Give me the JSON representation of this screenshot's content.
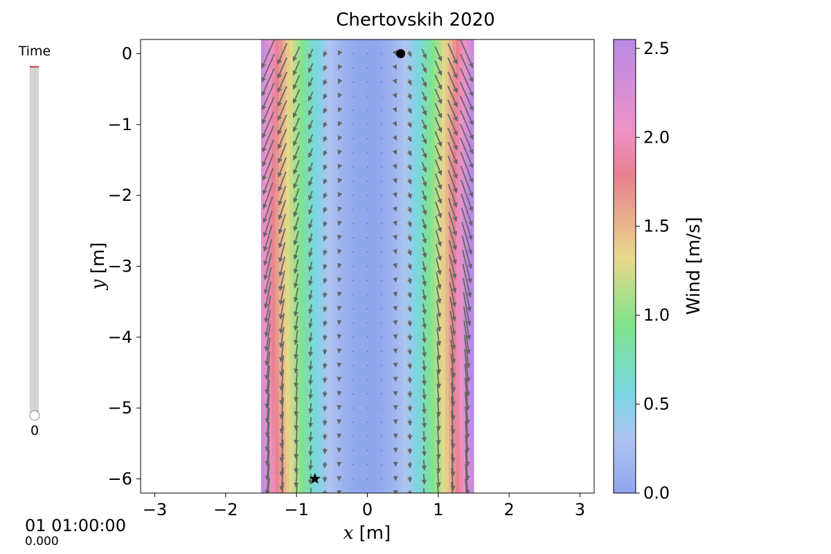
{
  "time_slider": {
    "label": "Time",
    "value_label": "0",
    "value_fraction": 0.0,
    "track_color": "#d3d3d3",
    "max_marker_color": "#d62728"
  },
  "clock": {
    "datetime": "01 01:00:00",
    "fraction": "0.000"
  },
  "chart_data": {
    "type": "heatmap",
    "title": "Chertovskih 2020",
    "xlabel_var": "x",
    "xlabel_unit": " [m]",
    "ylabel_var": "y",
    "ylabel_unit": " [m]",
    "xlim": [
      -3.2,
      3.2
    ],
    "ylim": [
      -6.2,
      0.2
    ],
    "xticks": [
      -3,
      -2,
      -1,
      0,
      1,
      2,
      3
    ],
    "xtick_labels": [
      "−3",
      "−2",
      "−1",
      "0",
      "1",
      "2",
      "3"
    ],
    "yticks": [
      0,
      -1,
      -2,
      -3,
      -4,
      -5,
      -6
    ],
    "ytick_labels": [
      "0",
      "−1",
      "−2",
      "−3",
      "−4",
      "−5",
      "−6"
    ],
    "field": {
      "x_range": [
        -1.5,
        1.5
      ],
      "y_range": [
        -6.2,
        0.2
      ],
      "speed_profile": "wind speed = 2.5·(x/1.5)^2, with slight modulation along y",
      "quiver_color": "#666666"
    },
    "colorbar": {
      "label": "Wind [m/s]",
      "range": [
        0.0,
        2.55
      ],
      "ticks": [
        0.0,
        0.5,
        1.0,
        1.5,
        2.0,
        2.5
      ],
      "tick_labels": [
        "0.0",
        "0.5",
        "1.0",
        "1.5",
        "2.0",
        "2.5"
      ],
      "colors": [
        "#8fa6ee",
        "#aec3f0",
        "#79d6e2",
        "#7fe38b",
        "#e8d98a",
        "#e87f90",
        "#ee92c7",
        "#b88ae6"
      ]
    },
    "markers": [
      {
        "name": "start",
        "shape": "circle",
        "x": 0.47,
        "y": 0.0
      },
      {
        "name": "goal",
        "shape": "star",
        "x": -0.74,
        "y": -6.0
      }
    ]
  }
}
